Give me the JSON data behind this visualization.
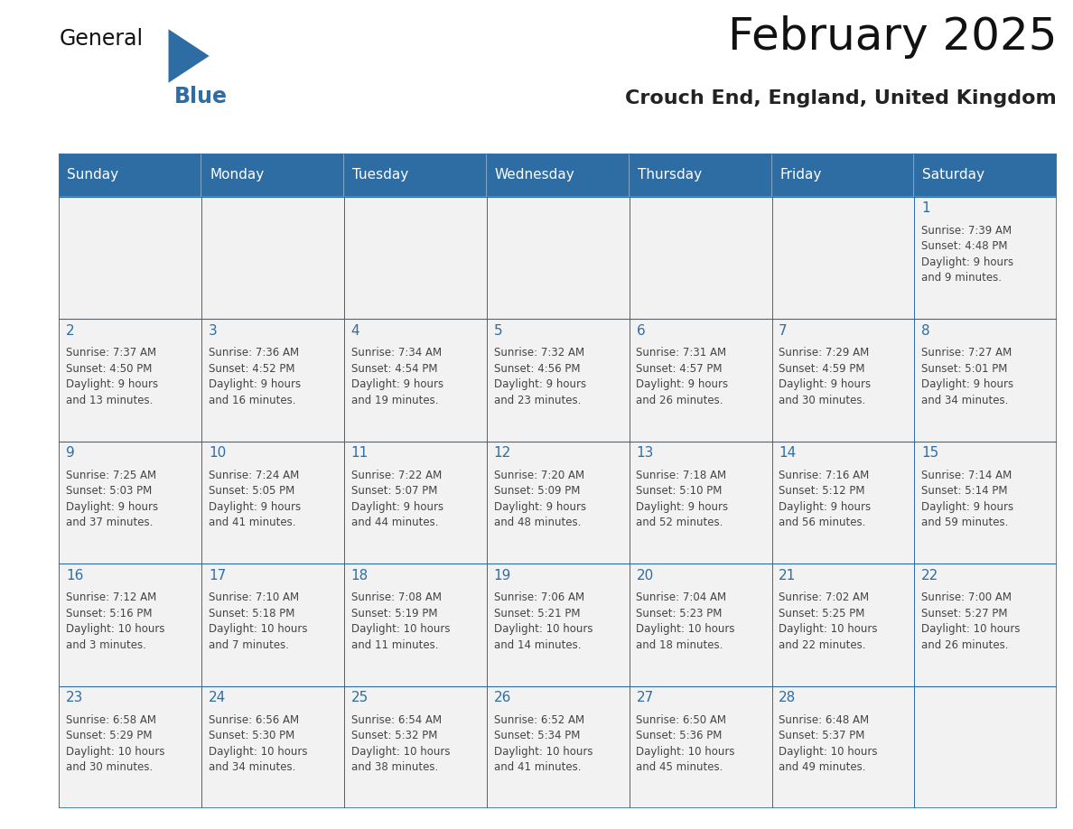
{
  "title": "February 2025",
  "subtitle": "Crouch End, England, United Kingdom",
  "header_bg": "#2E6DA4",
  "header_text": "#FFFFFF",
  "cell_bg": "#F2F2F2",
  "day_number_color": "#2E6DA4",
  "cell_text_color": "#444444",
  "border_color": "#2E6DA4",
  "days_of_week": [
    "Sunday",
    "Monday",
    "Tuesday",
    "Wednesday",
    "Thursday",
    "Friday",
    "Saturday"
  ],
  "calendar": [
    [
      null,
      null,
      null,
      null,
      null,
      null,
      {
        "day": "1",
        "sunrise": "7:39 AM",
        "sunset": "4:48 PM",
        "daylight": "9 hours\nand 9 minutes."
      }
    ],
    [
      {
        "day": "2",
        "sunrise": "7:37 AM",
        "sunset": "4:50 PM",
        "daylight": "9 hours\nand 13 minutes."
      },
      {
        "day": "3",
        "sunrise": "7:36 AM",
        "sunset": "4:52 PM",
        "daylight": "9 hours\nand 16 minutes."
      },
      {
        "day": "4",
        "sunrise": "7:34 AM",
        "sunset": "4:54 PM",
        "daylight": "9 hours\nand 19 minutes."
      },
      {
        "day": "5",
        "sunrise": "7:32 AM",
        "sunset": "4:56 PM",
        "daylight": "9 hours\nand 23 minutes."
      },
      {
        "day": "6",
        "sunrise": "7:31 AM",
        "sunset": "4:57 PM",
        "daylight": "9 hours\nand 26 minutes."
      },
      {
        "day": "7",
        "sunrise": "7:29 AM",
        "sunset": "4:59 PM",
        "daylight": "9 hours\nand 30 minutes."
      },
      {
        "day": "8",
        "sunrise": "7:27 AM",
        "sunset": "5:01 PM",
        "daylight": "9 hours\nand 34 minutes."
      }
    ],
    [
      {
        "day": "9",
        "sunrise": "7:25 AM",
        "sunset": "5:03 PM",
        "daylight": "9 hours\nand 37 minutes."
      },
      {
        "day": "10",
        "sunrise": "7:24 AM",
        "sunset": "5:05 PM",
        "daylight": "9 hours\nand 41 minutes."
      },
      {
        "day": "11",
        "sunrise": "7:22 AM",
        "sunset": "5:07 PM",
        "daylight": "9 hours\nand 44 minutes."
      },
      {
        "day": "12",
        "sunrise": "7:20 AM",
        "sunset": "5:09 PM",
        "daylight": "9 hours\nand 48 minutes."
      },
      {
        "day": "13",
        "sunrise": "7:18 AM",
        "sunset": "5:10 PM",
        "daylight": "9 hours\nand 52 minutes."
      },
      {
        "day": "14",
        "sunrise": "7:16 AM",
        "sunset": "5:12 PM",
        "daylight": "9 hours\nand 56 minutes."
      },
      {
        "day": "15",
        "sunrise": "7:14 AM",
        "sunset": "5:14 PM",
        "daylight": "9 hours\nand 59 minutes."
      }
    ],
    [
      {
        "day": "16",
        "sunrise": "7:12 AM",
        "sunset": "5:16 PM",
        "daylight": "10 hours\nand 3 minutes."
      },
      {
        "day": "17",
        "sunrise": "7:10 AM",
        "sunset": "5:18 PM",
        "daylight": "10 hours\nand 7 minutes."
      },
      {
        "day": "18",
        "sunrise": "7:08 AM",
        "sunset": "5:19 PM",
        "daylight": "10 hours\nand 11 minutes."
      },
      {
        "day": "19",
        "sunrise": "7:06 AM",
        "sunset": "5:21 PM",
        "daylight": "10 hours\nand 14 minutes."
      },
      {
        "day": "20",
        "sunrise": "7:04 AM",
        "sunset": "5:23 PM",
        "daylight": "10 hours\nand 18 minutes."
      },
      {
        "day": "21",
        "sunrise": "7:02 AM",
        "sunset": "5:25 PM",
        "daylight": "10 hours\nand 22 minutes."
      },
      {
        "day": "22",
        "sunrise": "7:00 AM",
        "sunset": "5:27 PM",
        "daylight": "10 hours\nand 26 minutes."
      }
    ],
    [
      {
        "day": "23",
        "sunrise": "6:58 AM",
        "sunset": "5:29 PM",
        "daylight": "10 hours\nand 30 minutes."
      },
      {
        "day": "24",
        "sunrise": "6:56 AM",
        "sunset": "5:30 PM",
        "daylight": "10 hours\nand 34 minutes."
      },
      {
        "day": "25",
        "sunrise": "6:54 AM",
        "sunset": "5:32 PM",
        "daylight": "10 hours\nand 38 minutes."
      },
      {
        "day": "26",
        "sunrise": "6:52 AM",
        "sunset": "5:34 PM",
        "daylight": "10 hours\nand 41 minutes."
      },
      {
        "day": "27",
        "sunrise": "6:50 AM",
        "sunset": "5:36 PM",
        "daylight": "10 hours\nand 45 minutes."
      },
      {
        "day": "28",
        "sunrise": "6:48 AM",
        "sunset": "5:37 PM",
        "daylight": "10 hours\nand 49 minutes."
      },
      null
    ]
  ],
  "title_fontsize": 36,
  "subtitle_fontsize": 16,
  "header_fontsize": 11,
  "day_num_fontsize": 11,
  "cell_text_fontsize": 8.5,
  "logo_general_fontsize": 17,
  "logo_blue_fontsize": 17
}
